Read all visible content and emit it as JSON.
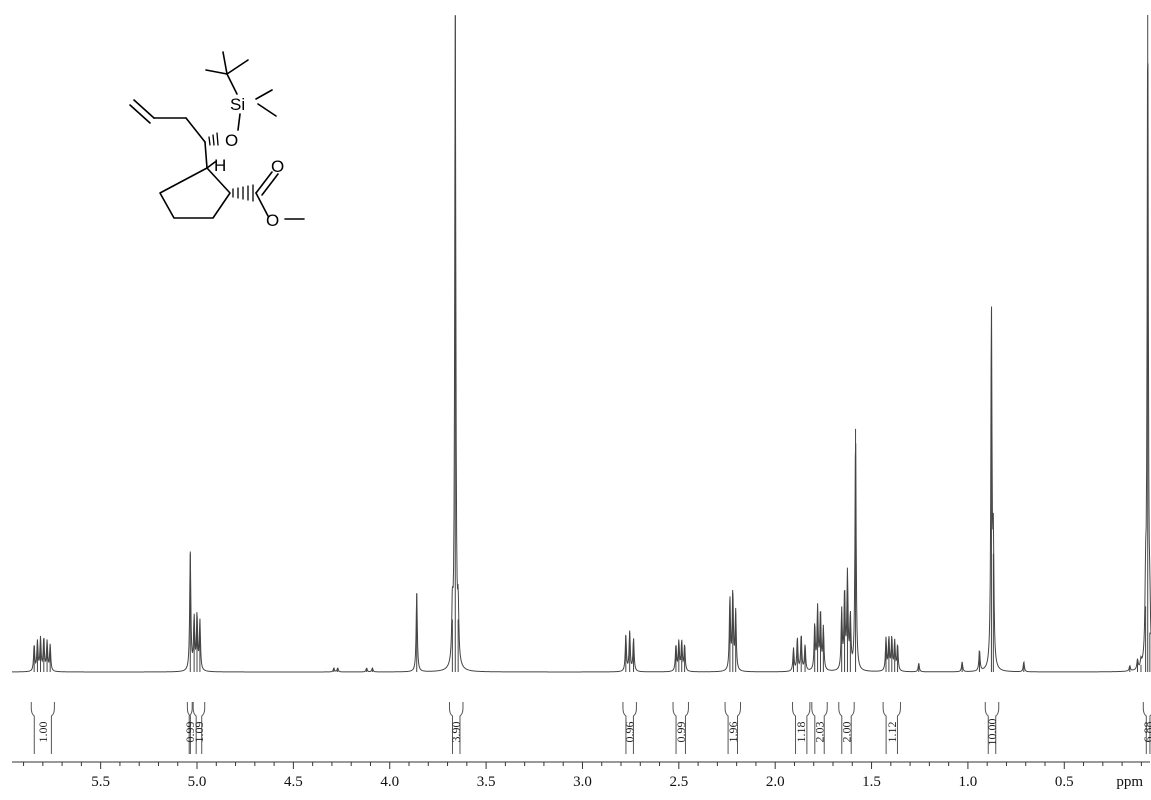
{
  "chart_data": {
    "type": "line",
    "title": "",
    "xlabel": "ppm",
    "xlim": [
      5.96,
      0.05
    ],
    "x_reversed": true,
    "x_ticks": [
      5.5,
      5.0,
      4.5,
      4.0,
      3.5,
      3.0,
      2.5,
      2.0,
      1.5,
      1.0,
      0.5
    ],
    "x_tick_labels": [
      "5.5",
      "5.0",
      "4.5",
      "4.0",
      "3.5",
      "3.0",
      "2.5",
      "2.0",
      "1.5",
      "1.0",
      "0.5"
    ],
    "y_range": [
      0,
      1.0
    ],
    "grid": false,
    "legend": "none",
    "line_color": "#444444",
    "signals": [
      {
        "shift": 5.8,
        "multiplet": [
          5.845,
          5.828,
          5.812,
          5.795,
          5.778,
          5.762
        ],
        "heights": [
          0.04,
          0.045,
          0.05,
          0.05,
          0.045,
          0.04
        ]
      },
      {
        "shift": 5.03,
        "multiplet": [
          5.035
        ],
        "heights": [
          0.18
        ]
      },
      {
        "shift": 5.01,
        "multiplet": [
          5.015,
          5.0,
          4.985
        ],
        "heights": [
          0.08,
          0.085,
          0.075
        ]
      },
      {
        "shift": 4.28,
        "multiplet": [
          4.29,
          4.27
        ],
        "heights": [
          0.006,
          0.006
        ]
      },
      {
        "shift": 4.1,
        "multiplet": [
          4.12,
          4.09
        ],
        "heights": [
          0.006,
          0.006
        ]
      },
      {
        "shift": 3.86,
        "multiplet": [
          3.86
        ],
        "heights": [
          0.12
        ]
      },
      {
        "shift": 3.65,
        "multiplet": [
          3.66
        ],
        "heights": [
          1.0
        ]
      },
      {
        "shift": 3.67,
        "multiplet": [
          3.675,
          3.645
        ],
        "heights": [
          0.08,
          0.08
        ]
      },
      {
        "shift": 2.75,
        "multiplet": [
          2.775,
          2.755,
          2.735
        ],
        "heights": [
          0.055,
          0.06,
          0.05
        ]
      },
      {
        "shift": 2.49,
        "multiplet": [
          2.515,
          2.5,
          2.485,
          2.47
        ],
        "heights": [
          0.04,
          0.045,
          0.045,
          0.04
        ]
      },
      {
        "shift": 2.22,
        "multiplet": [
          2.235,
          2.22,
          2.205
        ],
        "heights": [
          0.11,
          0.12,
          0.09
        ]
      },
      {
        "shift": 1.87,
        "multiplet": [
          1.905,
          1.885,
          1.865,
          1.845
        ],
        "heights": [
          0.035,
          0.05,
          0.055,
          0.04
        ]
      },
      {
        "shift": 1.77,
        "multiplet": [
          1.795,
          1.78,
          1.765,
          1.75
        ],
        "heights": [
          0.07,
          0.095,
          0.09,
          0.065
        ]
      },
      {
        "shift": 1.62,
        "multiplet": [
          1.655,
          1.64,
          1.625,
          1.61
        ],
        "heights": [
          0.09,
          0.12,
          0.145,
          0.08
        ]
      },
      {
        "shift": 1.58,
        "multiplet": [
          1.583
        ],
        "heights": [
          0.37
        ]
      },
      {
        "shift": 1.39,
        "multiplet": [
          1.425,
          1.41,
          1.395,
          1.38,
          1.365
        ],
        "heights": [
          0.05,
          0.05,
          0.05,
          0.045,
          0.04
        ]
      },
      {
        "shift": 1.25,
        "multiplet": [
          1.255
        ],
        "heights": [
          0.013
        ]
      },
      {
        "shift": 1.03,
        "multiplet": [
          1.03
        ],
        "heights": [
          0.015
        ]
      },
      {
        "shift": 0.94,
        "multiplet": [
          0.94
        ],
        "heights": [
          0.032
        ]
      },
      {
        "shift": 0.87,
        "multiplet": [
          0.878,
          0.868
        ],
        "heights": [
          0.55,
          0.18
        ]
      },
      {
        "shift": 0.71,
        "multiplet": [
          0.71
        ],
        "heights": [
          0.015
        ]
      },
      {
        "shift": 0.16,
        "multiplet": [
          0.16
        ],
        "heights": [
          0.008
        ]
      },
      {
        "shift": 0.12,
        "multiplet": [
          0.12
        ],
        "heights": [
          0.015
        ]
      },
      {
        "shift": 0.1,
        "multiplet": [
          0.102
        ],
        "heights": [
          0.011
        ]
      },
      {
        "shift": 0.06,
        "multiplet": [
          0.067
        ],
        "heights": [
          1.0
        ]
      },
      {
        "shift": 0.07,
        "multiplet": [
          0.078,
          0.056
        ],
        "heights": [
          0.1,
          0.06
        ]
      }
    ],
    "integrals": [
      {
        "from": 5.86,
        "to": 5.74,
        "label": "1.00"
      },
      {
        "from": 5.05,
        "to": 5.025,
        "label": "0.99"
      },
      {
        "from": 5.02,
        "to": 4.96,
        "label": "1.09"
      },
      {
        "from": 3.69,
        "to": 3.62,
        "label": "3.90"
      },
      {
        "from": 2.79,
        "to": 2.72,
        "label": "0.96"
      },
      {
        "from": 2.53,
        "to": 2.45,
        "label": "0.99"
      },
      {
        "from": 2.26,
        "to": 2.18,
        "label": "1.96"
      },
      {
        "from": 1.91,
        "to": 1.82,
        "label": "1.18"
      },
      {
        "from": 1.81,
        "to": 1.73,
        "label": "2.03"
      },
      {
        "from": 1.67,
        "to": 1.59,
        "label": "2.00"
      },
      {
        "from": 1.44,
        "to": 1.35,
        "label": "1.12"
      },
      {
        "from": 0.91,
        "to": 0.84,
        "label": "10.00"
      },
      {
        "from": 0.09,
        "to": 0.04,
        "label": "6.88"
      }
    ]
  },
  "structure": {
    "atom_labels": {
      "silicon": "Si",
      "oxygen_ether": "O",
      "hydrogen": "H",
      "oxygen_carbonyl": "O",
      "oxygen_ester": "O"
    }
  }
}
